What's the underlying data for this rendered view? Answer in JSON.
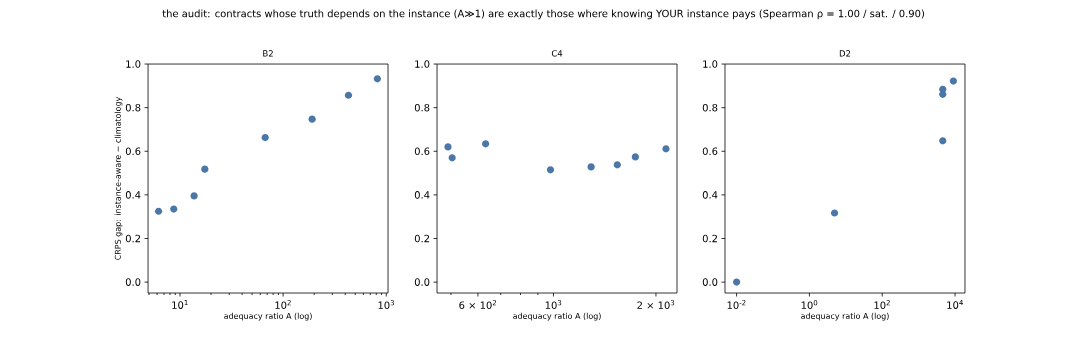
{
  "chart_data": [
    {
      "type": "scatter",
      "title": "B2",
      "xlabel": "adequacy ratio A (log)",
      "ylabel": "CRPS gap: instance-aware − climatology",
      "annotations": [
        "the audit: contracts whose truth depends on the instance (A≫1) are exactly those where knowing YOUR instance pays (Spearman ρ = 1.00 / sat. / 0.90)"
      ],
      "log": "x",
      "color": "#4a76a8",
      "x": [
        6.2,
        8.7,
        13.7,
        17.4,
        67,
        191,
        430,
        820
      ],
      "values": [
        0.325,
        0.335,
        0.395,
        0.518,
        0.663,
        0.747,
        0.857,
        0.932
      ],
      "xlim": [
        4.9,
        1040
      ],
      "ylim": [
        -0.05,
        1.0
      ],
      "xticks": [
        {
          "value": 10,
          "label": "10$^{1}$"
        },
        {
          "value": 100,
          "label": "10$^{2}$"
        },
        {
          "value": 1000,
          "label": "10$^{3}$"
        },
        {
          "value": 5,
          "label": null
        },
        {
          "value": 6,
          "label": null
        },
        {
          "value": 7,
          "label": null
        },
        {
          "value": 8,
          "label": null
        },
        {
          "value": 9,
          "label": null
        },
        {
          "value": 20,
          "label": null
        },
        {
          "value": 30,
          "label": null
        },
        {
          "value": 40,
          "label": null
        },
        {
          "value": 50,
          "label": null
        },
        {
          "value": 60,
          "label": null
        },
        {
          "value": 70,
          "label": null
        },
        {
          "value": 80,
          "label": null
        },
        {
          "value": 90,
          "label": null
        },
        {
          "value": 200,
          "label": null
        },
        {
          "value": 300,
          "label": null
        },
        {
          "value": 400,
          "label": null
        },
        {
          "value": 500,
          "label": null
        },
        {
          "value": 600,
          "label": null
        },
        {
          "value": 700,
          "label": null
        },
        {
          "value": 800,
          "label": null
        },
        {
          "value": 900,
          "label": null
        }
      ],
      "yticks": [
        {
          "value": 0,
          "label": "0.0"
        },
        {
          "value": 0.2,
          "label": "0.2"
        },
        {
          "value": 0.4,
          "label": "0.4"
        },
        {
          "value": 0.6,
          "label": "0.6"
        },
        {
          "value": 0.8,
          "label": "0.8"
        },
        {
          "value": 1.0,
          "label": "1.0"
        }
      ]
    },
    {
      "type": "scatter",
      "title": "C4",
      "xlabel": "adequacy ratio A (log)",
      "log": "x",
      "color": "#4a76a8",
      "x": [
        490,
        504,
        632,
        980,
        1290,
        1540,
        1740,
        2140
      ],
      "values": [
        0.62,
        0.57,
        0.634,
        0.515,
        0.528,
        0.538,
        0.574,
        0.611
      ],
      "xlim": [
        455,
        2306
      ],
      "ylim": [
        -0.05,
        1.0
      ],
      "xticks": [
        {
          "value": 600,
          "label": "6 × 10$^{2}$"
        },
        {
          "value": 1000,
          "label": "10$^{3}$"
        },
        {
          "value": 2000,
          "label": "2 × 10$^{3}$"
        },
        {
          "value": 500,
          "label": null
        },
        {
          "value": 700,
          "label": null
        },
        {
          "value": 800,
          "label": null
        },
        {
          "value": 900,
          "label": null
        }
      ],
      "yticks": [
        {
          "value": 0,
          "label": "0.0"
        },
        {
          "value": 0.2,
          "label": "0.2"
        },
        {
          "value": 0.4,
          "label": "0.4"
        },
        {
          "value": 0.6,
          "label": "0.6"
        },
        {
          "value": 0.8,
          "label": "0.8"
        },
        {
          "value": 1.0,
          "label": "1.0"
        }
      ]
    },
    {
      "type": "scatter",
      "title": "D2",
      "xlabel": "adequacy ratio A (log)",
      "log": "x",
      "color": "#4a76a8",
      "x": [
        0.01,
        4.9,
        4600,
        4600,
        4600,
        8400,
        9000
      ],
      "values": [
        0.0,
        0.317,
        0.884,
        0.861,
        0.648,
        null,
        0.922
      ],
      "xlim": [
        0.0048,
        18750
      ],
      "ylim": [
        -0.05,
        1.0
      ],
      "xticks": [
        {
          "value": 0.01,
          "label": "10$^{-2}$"
        },
        {
          "value": 1,
          "label": "10$^{0}$"
        },
        {
          "value": 100,
          "label": "10$^{2}$"
        },
        {
          "value": 10000,
          "label": "10$^{4}$"
        }
      ],
      "yticks": [
        {
          "value": 0,
          "label": "0.0"
        },
        {
          "value": 0.2,
          "label": "0.2"
        },
        {
          "value": 0.4,
          "label": "0.4"
        },
        {
          "value": 0.6,
          "label": "0.6"
        },
        {
          "value": 0.8,
          "label": "0.8"
        },
        {
          "value": 1.0,
          "label": "1.0"
        }
      ]
    }
  ]
}
